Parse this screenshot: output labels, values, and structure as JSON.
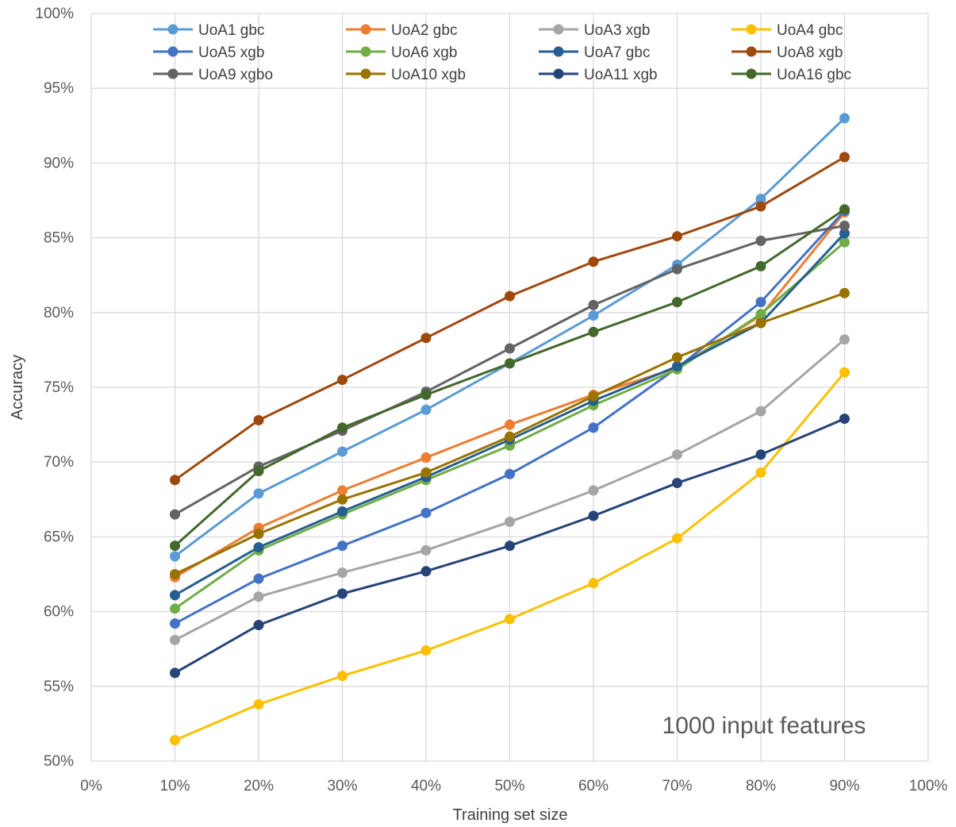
{
  "chart_data": {
    "type": "line",
    "xlabel": "Training set size",
    "ylabel": "Accuracy",
    "x_ticks": [
      "0%",
      "10%",
      "20%",
      "30%",
      "40%",
      "50%",
      "60%",
      "70%",
      "80%",
      "90%",
      "100%"
    ],
    "y_ticks": [
      "50%",
      "55%",
      "60%",
      "65%",
      "70%",
      "75%",
      "80%",
      "85%",
      "90%",
      "95%",
      "100%"
    ],
    "xlim": [
      0,
      100
    ],
    "ylim": [
      50,
      100
    ],
    "grid": true,
    "legend_position": "top",
    "annotation": "1000 input features",
    "x": [
      10,
      20,
      30,
      40,
      50,
      60,
      70,
      80,
      90
    ],
    "series": [
      {
        "name": "UoA1 gbc",
        "color": "#5B9BD5",
        "values": [
          63.7,
          67.9,
          70.7,
          73.5,
          76.6,
          79.8,
          83.2,
          87.6,
          93.0
        ]
      },
      {
        "name": "UoA2 gbc",
        "color": "#ED7D31",
        "values": [
          62.3,
          65.6,
          68.1,
          70.3,
          72.5,
          74.5,
          76.3,
          79.8,
          86.7
        ]
      },
      {
        "name": "UoA3 xgb",
        "color": "#A5A5A5",
        "values": [
          58.1,
          61.0,
          62.6,
          64.1,
          66.0,
          68.1,
          70.5,
          73.4,
          78.2
        ]
      },
      {
        "name": "UoA4 gbc",
        "color": "#FFC000",
        "values": [
          51.4,
          53.8,
          55.7,
          57.4,
          59.5,
          61.9,
          64.9,
          69.3,
          76.0
        ]
      },
      {
        "name": "UoA5 xgb",
        "color": "#4472C4",
        "values": [
          59.2,
          62.2,
          64.4,
          66.6,
          69.2,
          72.3,
          76.3,
          80.7,
          86.8
        ]
      },
      {
        "name": "UoA6 xgb",
        "color": "#70AD47",
        "values": [
          60.2,
          64.1,
          66.5,
          68.8,
          71.1,
          73.8,
          76.2,
          79.9,
          84.7
        ]
      },
      {
        "name": "UoA7 gbc",
        "color": "#255E91",
        "values": [
          61.1,
          64.3,
          66.7,
          69.0,
          71.5,
          74.1,
          76.4,
          79.3,
          85.3
        ]
      },
      {
        "name": "UoA8 xgb",
        "color": "#9E480E",
        "values": [
          68.8,
          72.8,
          75.5,
          78.3,
          81.1,
          83.4,
          85.1,
          87.1,
          90.4
        ]
      },
      {
        "name": "UoA9 xgbo",
        "color": "#636363",
        "values": [
          66.5,
          69.7,
          72.1,
          74.7,
          77.6,
          80.5,
          82.9,
          84.8,
          85.8
        ]
      },
      {
        "name": "UoA10 xgb",
        "color": "#997300",
        "values": [
          62.5,
          65.2,
          67.5,
          69.3,
          71.7,
          74.4,
          77.0,
          79.3,
          81.3
        ]
      },
      {
        "name": "UoA11 xgb",
        "color": "#264478",
        "values": [
          55.9,
          59.1,
          61.2,
          62.7,
          64.4,
          66.4,
          68.6,
          70.5,
          72.9
        ]
      },
      {
        "name": "UoA16 gbc",
        "color": "#43682B",
        "values": [
          64.4,
          69.4,
          72.3,
          74.5,
          76.6,
          78.7,
          80.7,
          83.1,
          86.9
        ]
      }
    ]
  }
}
